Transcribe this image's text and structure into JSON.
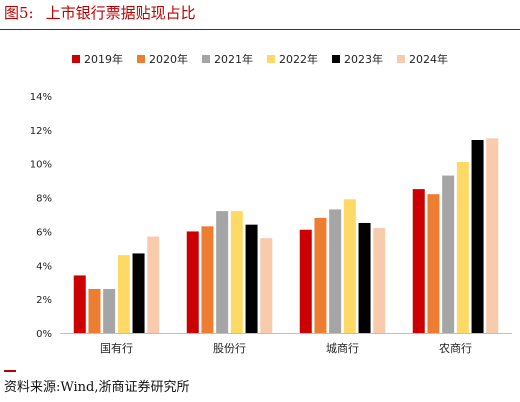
{
  "figure": {
    "number": "图5:",
    "title": "上市银行票据贴现占比",
    "source": "资料来源:Wind,浙商证券研究所"
  },
  "colors": {
    "title": "#c00000",
    "rule": "#c00000"
  },
  "chart_data": {
    "type": "bar",
    "title": "",
    "xlabel": "",
    "ylabel": "",
    "categories": [
      "国有行",
      "股份行",
      "城商行",
      "农商行"
    ],
    "ylim": [
      0,
      14
    ],
    "yticks": [
      0,
      2,
      4,
      6,
      8,
      10,
      12,
      14
    ],
    "ytick_labels": [
      "0%",
      "2%",
      "4%",
      "6%",
      "8%",
      "10%",
      "12%",
      "14%"
    ],
    "legend_position": "top-center",
    "grid": false,
    "series": [
      {
        "name": "2019年",
        "color": "#cc0000",
        "values": [
          3.4,
          6.0,
          6.1,
          8.5
        ]
      },
      {
        "name": "2020年",
        "color": "#ed7d31",
        "values": [
          2.6,
          6.3,
          6.8,
          8.2
        ]
      },
      {
        "name": "2021年",
        "color": "#a5a5a5",
        "values": [
          2.6,
          7.2,
          7.3,
          9.3
        ]
      },
      {
        "name": "2022年",
        "color": "#ffd966",
        "values": [
          4.6,
          7.2,
          7.9,
          10.1
        ]
      },
      {
        "name": "2023年",
        "color": "#000000",
        "values": [
          4.7,
          6.4,
          6.5,
          11.4
        ]
      },
      {
        "name": "2024年",
        "color": "#f8cbad",
        "values": [
          5.7,
          5.6,
          6.2,
          11.5
        ]
      }
    ]
  }
}
